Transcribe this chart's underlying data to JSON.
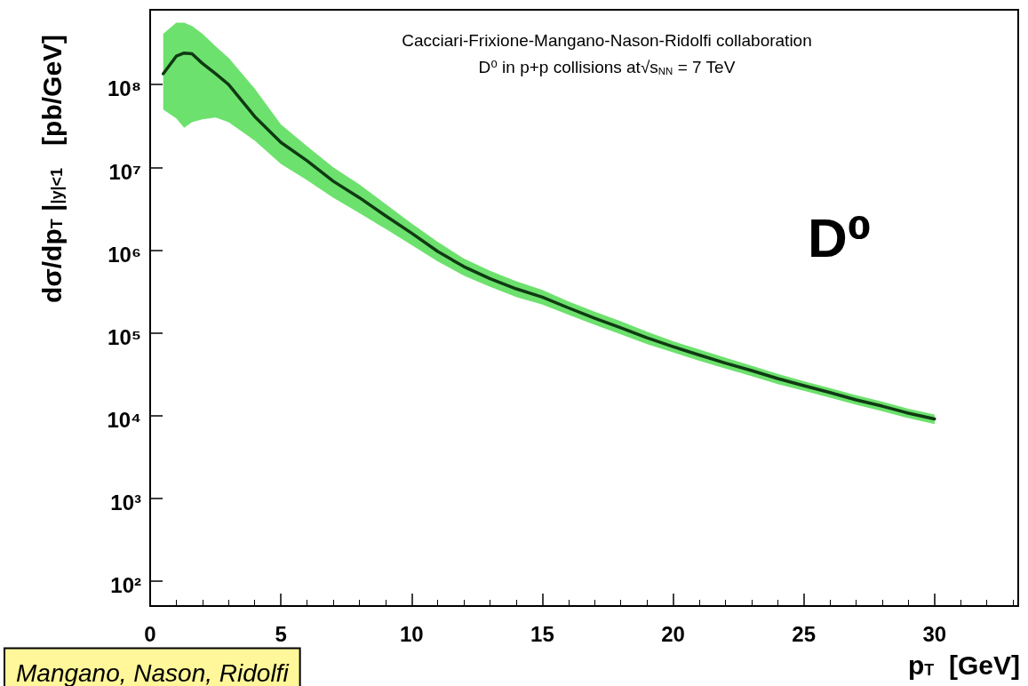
{
  "chart_data": {
    "type": "line",
    "xlabel": "p$_{T}$  [GeV]",
    "ylabel": "dσ/dp$_{T}$ |$_{|y|<1}$   [pb/GeV]",
    "annotations": [
      "Cacciari-Frixione-Mangano-Nason-Ridolfi collaboration",
      "D⁰ in p+p collisions at√s$_{NN}$ = 7 TeV",
      "D⁰",
      "Mangano, Nason, Ridolfi"
    ],
    "log": "y",
    "xlim": [
      0,
      33.2
    ],
    "xticks": [
      0,
      5,
      10,
      15,
      20,
      25,
      30
    ],
    "ylim": [
      50,
      800000000
    ],
    "yticks": [
      {
        "value": 100,
        "label": "10²"
      },
      {
        "value": 1000,
        "label": "10³"
      },
      {
        "value": 10000,
        "label": "10⁴"
      },
      {
        "value": 100000,
        "label": "10⁵"
      },
      {
        "value": 1000000,
        "label": "10⁶"
      },
      {
        "value": 10000000,
        "label": "10⁷"
      },
      {
        "value": 100000000,
        "label": "10⁸"
      }
    ],
    "marker": "none",
    "line_style": "solid",
    "x": [
      0.5,
      1,
      1.3,
      1.6,
      2,
      2.5,
      3,
      4,
      5,
      6,
      7,
      8,
      9,
      10,
      11,
      12,
      13,
      14,
      15,
      16,
      17,
      18,
      19,
      20,
      21,
      22,
      23,
      24,
      25,
      26,
      27,
      28,
      29,
      30
    ],
    "series": [
      {
        "color": "#0f3a12",
        "values": [
          135000000,
          220000000,
          240000000,
          235000000,
          180000000,
          135000000,
          100000000,
          41000000,
          20000000,
          12000000,
          6800000,
          4300000,
          2600000,
          1600000,
          960000,
          630000,
          450000,
          340000,
          270000,
          200000,
          150000,
          115000,
          87000,
          68000,
          54000,
          43000,
          35000,
          28000,
          23000,
          19000,
          15500,
          13000,
          10700,
          9100
        ],
        "lower": [
          50000000,
          39000000,
          30000000,
          35000000,
          38000000,
          40000000,
          35000000,
          21000000,
          11000000,
          7000000,
          4300000,
          2800000,
          1800000,
          1150000,
          730000,
          490000,
          360000,
          270000,
          220000,
          165000,
          125000,
          96000,
          73000,
          58000,
          46000,
          37000,
          30000,
          24000,
          20000,
          16500,
          13500,
          11300,
          9300,
          7900
        ],
        "upper": [
          410000000,
          560000000,
          560000000,
          510000000,
          410000000,
          290000000,
          210000000,
          89000000,
          33000000,
          18000000,
          10000000,
          6200000,
          3600000,
          2100000,
          1250000,
          790000,
          560000,
          420000,
          330000,
          240000,
          180000,
          138000,
          103000,
          79000,
          63000,
          50000,
          40000,
          32000,
          26000,
          21500,
          17600,
          14700,
          12100,
          10300
        ]
      }
    ]
  }
}
